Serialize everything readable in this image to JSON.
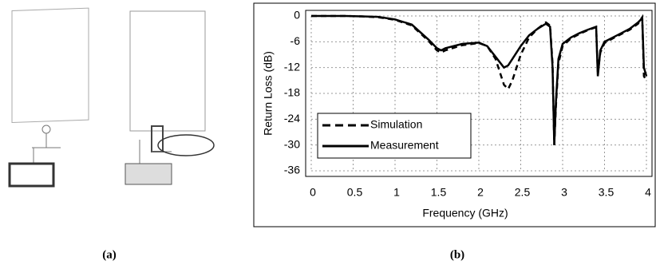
{
  "figure": {
    "panel_labels": [
      "(a)",
      "(b)"
    ]
  },
  "chart_data": {
    "type": "line",
    "xlabel": "Frequency (GHz)",
    "ylabel": "Return Loss (dB)",
    "x": [
      0,
      0.2,
      0.4,
      0.6,
      0.8,
      1.0,
      1.2,
      1.4,
      1.5,
      1.55,
      1.6,
      1.8,
      2.0,
      2.1,
      2.2,
      2.3,
      2.35,
      2.4,
      2.5,
      2.6,
      2.7,
      2.8,
      2.85,
      2.88,
      2.9,
      2.92,
      2.95,
      3.0,
      3.1,
      3.2,
      3.3,
      3.4,
      3.42,
      3.45,
      3.5,
      3.6,
      3.7,
      3.8,
      3.9,
      3.95,
      3.97,
      4.0
    ],
    "series": [
      {
        "name": "Simulation",
        "color": "#000000",
        "line_style": "dashed",
        "values": [
          0,
          0,
          0,
          -0.1,
          -0.3,
          -0.9,
          -2.2,
          -5.8,
          -8,
          -8.5,
          -8,
          -6.8,
          -6.3,
          -7,
          -10,
          -16,
          -17,
          -15,
          -9,
          -5,
          -3,
          -1.5,
          -2.2,
          -11,
          -30,
          -21,
          -11,
          -7,
          -5.2,
          -4.2,
          -3.3,
          -2.6,
          -13,
          -8.5,
          -6.3,
          -5.2,
          -4.2,
          -3.2,
          -1.8,
          -0.3,
          -14,
          -15
        ]
      },
      {
        "name": "Measurement",
        "color": "#000000",
        "line_style": "solid",
        "values": [
          0,
          0,
          0,
          -0.1,
          -0.2,
          -0.8,
          -2,
          -5.5,
          -7.5,
          -8,
          -7.5,
          -6.5,
          -6.2,
          -7,
          -9.5,
          -12,
          -11.5,
          -10,
          -7,
          -4.5,
          -3,
          -1.8,
          -2.5,
          -12,
          -30,
          -20,
          -10,
          -6.5,
          -5,
          -4,
          -3.2,
          -2.5,
          -14,
          -8,
          -6,
          -5,
          -4,
          -3,
          -1.5,
          -0.5,
          -12,
          -14
        ]
      }
    ],
    "xlim": [
      0,
      4
    ],
    "xticks": [
      0,
      0.5,
      1,
      1.5,
      2,
      2.5,
      3,
      3.5,
      4
    ],
    "ylim": [
      -36,
      0
    ],
    "yticks": [
      -36,
      -30,
      -24,
      -18,
      -12,
      -6,
      0
    ],
    "grid": true,
    "legend": "lower left"
  }
}
